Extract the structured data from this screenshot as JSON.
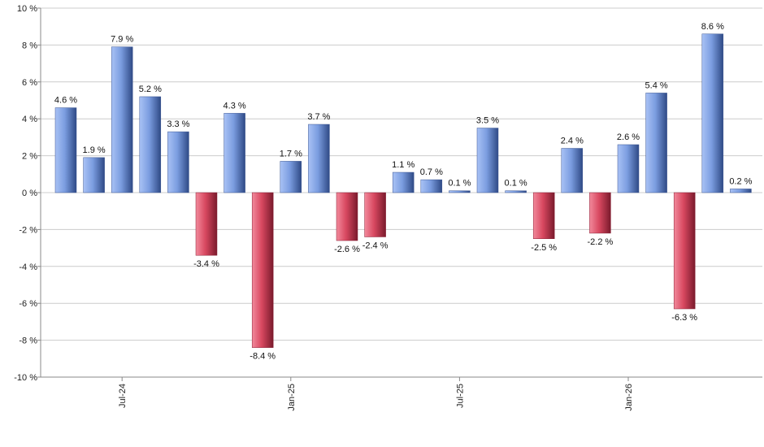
{
  "chart_data": {
    "type": "bar",
    "title": "",
    "xlabel": "",
    "ylabel": "",
    "ylim": [
      -10,
      10
    ],
    "y_ticks": [
      10,
      8,
      6,
      4,
      2,
      0,
      -2,
      -4,
      -6,
      -8,
      -10
    ],
    "y_tick_labels": [
      "10 %",
      "8 %",
      "6 %",
      "4 %",
      "2 %",
      "0 %",
      "-2 %",
      "-4 %",
      "-6 %",
      "-8 %",
      "-10 %"
    ],
    "grid": true,
    "x_tick_labels": [
      {
        "label": "Jul-24",
        "index": 2
      },
      {
        "label": "Jan-25",
        "index": 8
      },
      {
        "label": "Jul-25",
        "index": 14
      },
      {
        "label": "Jan-26",
        "index": 20
      }
    ],
    "values": [
      4.6,
      1.9,
      7.9,
      5.2,
      3.3,
      -3.4,
      4.3,
      -8.4,
      1.7,
      3.7,
      -2.6,
      -2.4,
      1.1,
      0.7,
      0.1,
      3.5,
      0.1,
      -2.5,
      2.4,
      -2.2,
      2.6,
      5.4,
      -6.3,
      8.6,
      0.2
    ],
    "labels": [
      "4.6 %",
      "1.9 %",
      "7.9 %",
      "5.2 %",
      "3.3 %",
      "-3.4 %",
      "4.3 %",
      "-8.4 %",
      "1.7 %",
      "3.7 %",
      "-2.6 %",
      "-2.4 %",
      "1.1 %",
      "0.7 %",
      "0.1 %",
      "3.5 %",
      "0.1 %",
      "-2.5 %",
      "2.4 %",
      "-2.2 %",
      "2.6 %",
      "5.4 %",
      "-6.3 %",
      "8.6 %",
      "0.2 %"
    ],
    "colors": {
      "positive": "#7b9de0",
      "negative": "#d84860",
      "grid": "#cccccc",
      "axis": "#888888"
    }
  }
}
